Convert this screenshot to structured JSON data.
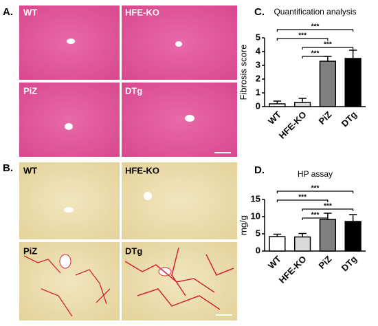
{
  "panels": [
    {
      "label": "A.",
      "images": [
        "WT",
        "HFE-KO",
        "PiZ",
        "DTg"
      ]
    },
    {
      "label": "B.",
      "images": [
        "WT",
        "HFE-KO",
        "PiZ",
        "DTg"
      ]
    }
  ],
  "chart_data": [
    {
      "type": "bar",
      "panel_label": "C.",
      "title": "Quantification analysis",
      "y_label": "Fibrosis score",
      "categories": [
        "WT",
        "HFE-KO",
        "PiZ",
        "DTg"
      ],
      "values": [
        0.2,
        0.3,
        3.3,
        3.5
      ],
      "errors": [
        0.2,
        0.3,
        0.35,
        0.6
      ],
      "colors": [
        "#ffffff",
        "#d9d9d9",
        "#808080",
        "#000000"
      ],
      "ylim": [
        0,
        5
      ],
      "yticks": [
        0,
        1,
        2,
        3,
        4,
        5
      ],
      "annotations": [
        {
          "from": 0,
          "to": 3,
          "label": "***"
        },
        {
          "from": 0,
          "to": 2,
          "label": "***"
        },
        {
          "from": 1,
          "to": 3,
          "label": "***"
        },
        {
          "from": 1,
          "to": 2,
          "label": "***"
        }
      ]
    },
    {
      "type": "bar",
      "panel_label": "D.",
      "title": "HP assay",
      "y_label": "mg/g",
      "categories": [
        "WT",
        "HFE-KO",
        "PiZ",
        "DTg"
      ],
      "values": [
        4.2,
        4.1,
        9.2,
        8.6
      ],
      "errors": [
        0.7,
        1.0,
        1.8,
        2.0
      ],
      "colors": [
        "#ffffff",
        "#d9d9d9",
        "#808080",
        "#000000"
      ],
      "ylim": [
        0,
        15
      ],
      "yticks": [
        0,
        5,
        10,
        15
      ],
      "annotations": [
        {
          "from": 0,
          "to": 3,
          "label": "***"
        },
        {
          "from": 0,
          "to": 2,
          "label": "***"
        },
        {
          "from": 1,
          "to": 3,
          "label": "***"
        },
        {
          "from": 1,
          "to": 2,
          "label": "***"
        }
      ]
    }
  ]
}
